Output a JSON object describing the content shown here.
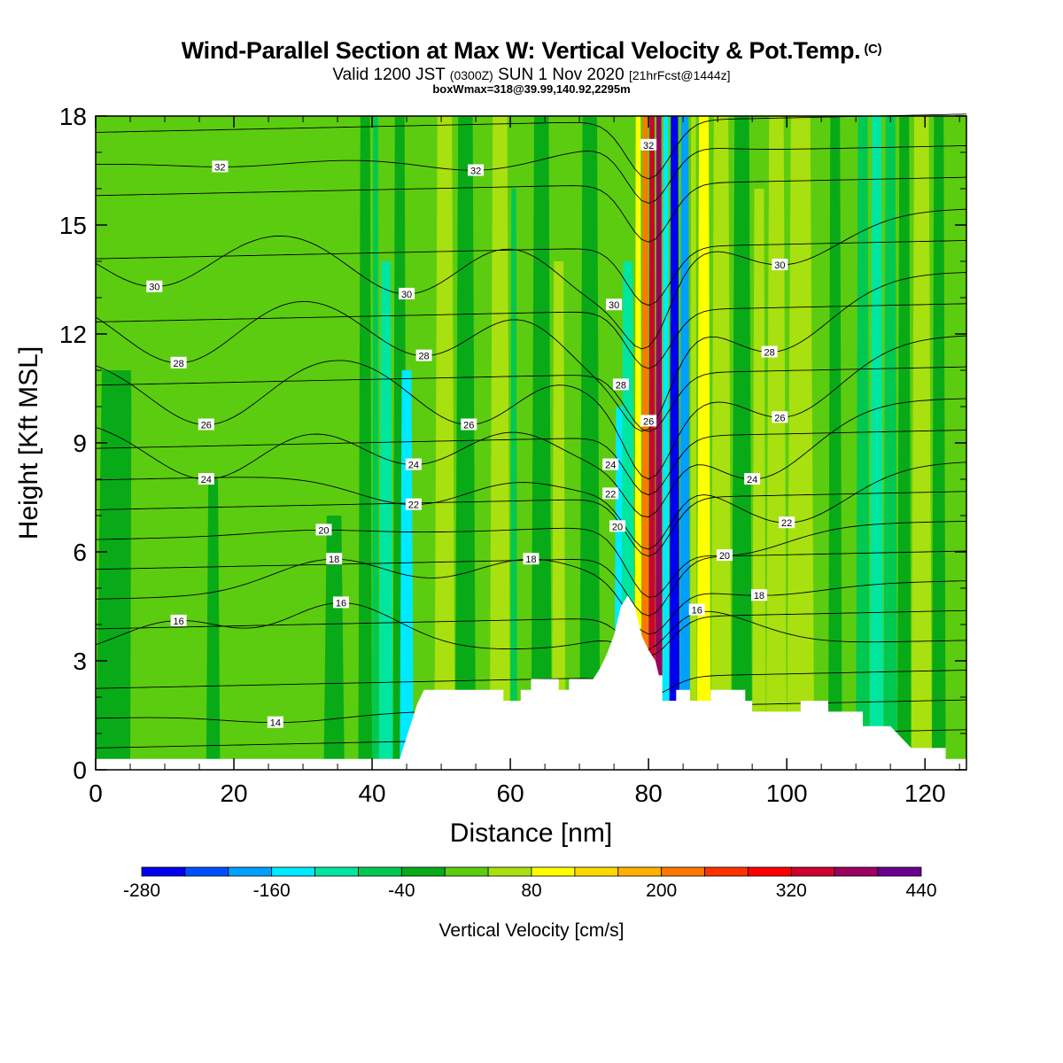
{
  "header": {
    "title": "Wind-Parallel Section at Max W: Vertical Velocity & Pot.Temp.",
    "title_mark": "(C)",
    "subtitle_a": "Valid 1200 JST",
    "subtitle_b": "(0300Z)",
    "subtitle_c": "SUN 1 Nov 2020",
    "subtitle_d": "[21hrFcst@1444z]",
    "subsubtitle": "boxWmax=318@39.99,140.92,2295m"
  },
  "chart_data": {
    "type": "heatmap",
    "xlabel": "Distance [nm]",
    "ylabel": "Height [Kft MSL]",
    "xlim": [
      0,
      126
    ],
    "ylim": [
      0,
      18
    ],
    "x_ticks": [
      0,
      20,
      40,
      60,
      80,
      100,
      120
    ],
    "y_ticks": [
      0,
      3,
      6,
      9,
      12,
      15,
      18
    ],
    "colorbar": {
      "title": "Vertical Velocity [cm/s]",
      "min": -280,
      "step": 40,
      "labels": [
        "-280",
        "-160",
        "-40",
        "80",
        "200",
        "320",
        "440"
      ],
      "colors": [
        "#0000ee",
        "#0050ff",
        "#00a0ff",
        "#00eaff",
        "#00e6a0",
        "#00c850",
        "#08aa18",
        "#5ccc10",
        "#a8e010",
        "#ffff00",
        "#ffd800",
        "#ffb000",
        "#ff7800",
        "#ff3200",
        "#ff0000",
        "#d00030",
        "#9a0060",
        "#6a0090"
      ]
    },
    "background_value_cm_s": 0,
    "vertical_velocity_bands": [
      {
        "x_start": 0,
        "x_end": 6,
        "value": -20,
        "top": 11
      },
      {
        "x_start": 5,
        "x_end": 7,
        "value": 20,
        "top": 18
      },
      {
        "x_start": 16,
        "x_end": 18,
        "value": -20,
        "top": 8
      },
      {
        "x_start": 33,
        "x_end": 36,
        "value": -20,
        "top": 7
      },
      {
        "x_start": 38,
        "x_end": 40,
        "value": -20,
        "top": 18
      },
      {
        "x_start": 40,
        "x_end": 41,
        "value": -60,
        "top": 18
      },
      {
        "x_start": 41,
        "x_end": 43,
        "value": -100,
        "top": 14
      },
      {
        "x_start": 43,
        "x_end": 45,
        "value": -20,
        "top": 18
      },
      {
        "x_start": 44,
        "x_end": 46,
        "value": -140,
        "top": 11
      },
      {
        "x_start": 49,
        "x_end": 52,
        "value": 60,
        "top": 18
      },
      {
        "x_start": 52,
        "x_end": 55,
        "value": -20,
        "top": 18
      },
      {
        "x_start": 55,
        "x_end": 57,
        "value": 20,
        "top": 16
      },
      {
        "x_start": 57,
        "x_end": 60,
        "value": 60,
        "top": 18
      },
      {
        "x_start": 60,
        "x_end": 61,
        "value": -60,
        "top": 16
      },
      {
        "x_start": 63,
        "x_end": 66,
        "value": -20,
        "top": 18
      },
      {
        "x_start": 66,
        "x_end": 68,
        "value": 60,
        "top": 14
      },
      {
        "x_start": 70,
        "x_end": 73,
        "value": -20,
        "top": 18
      },
      {
        "x_start": 75,
        "x_end": 77,
        "value": -160,
        "top": 10
      },
      {
        "x_start": 76,
        "x_end": 78,
        "value": -100,
        "top": 14
      },
      {
        "x_start": 78,
        "x_end": 79,
        "value": 100,
        "top": 18
      },
      {
        "x_start": 79,
        "x_end": 80,
        "value": 220,
        "top": 18
      },
      {
        "x_start": 80,
        "x_end": 81,
        "value": 320,
        "top": 18
      },
      {
        "x_start": 81,
        "x_end": 82,
        "value": 360,
        "top": 18
      },
      {
        "x_start": 82,
        "x_end": 83,
        "value": -140,
        "top": 18
      },
      {
        "x_start": 83,
        "x_end": 84.5,
        "value": -260,
        "top": 18
      },
      {
        "x_start": 84.5,
        "x_end": 86,
        "value": -180,
        "top": 18
      },
      {
        "x_start": 86,
        "x_end": 87,
        "value": 60,
        "top": 18
      },
      {
        "x_start": 87,
        "x_end": 89,
        "value": 100,
        "top": 18
      },
      {
        "x_start": 89,
        "x_end": 92,
        "value": 60,
        "top": 18
      },
      {
        "x_start": 92,
        "x_end": 95,
        "value": -20,
        "top": 18
      },
      {
        "x_start": 95,
        "x_end": 97,
        "value": 60,
        "top": 16
      },
      {
        "x_start": 97,
        "x_end": 100,
        "value": 60,
        "top": 18
      },
      {
        "x_start": 100,
        "x_end": 104,
        "value": 60,
        "top": 18
      },
      {
        "x_start": 106,
        "x_end": 108,
        "value": -20,
        "top": 18
      },
      {
        "x_start": 110,
        "x_end": 112,
        "value": -60,
        "top": 18
      },
      {
        "x_start": 112,
        "x_end": 114,
        "value": -100,
        "top": 18
      },
      {
        "x_start": 114,
        "x_end": 116,
        "value": -60,
        "top": 18
      },
      {
        "x_start": 116,
        "x_end": 118,
        "value": -20,
        "top": 18
      },
      {
        "x_start": 118,
        "x_end": 121,
        "value": 60,
        "top": 18
      },
      {
        "x_start": 121,
        "x_end": 123,
        "value": -20,
        "top": 18
      }
    ],
    "terrain_kft": [
      [
        0,
        0.3
      ],
      [
        44,
        0.3
      ],
      [
        44.5,
        0.6
      ],
      [
        45.5,
        1.2
      ],
      [
        46.5,
        1.8
      ],
      [
        47.5,
        2.2
      ],
      [
        59,
        2.2
      ],
      [
        59,
        1.9
      ],
      [
        61.5,
        1.9
      ],
      [
        61.5,
        2.2
      ],
      [
        63,
        2.2
      ],
      [
        63,
        2.5
      ],
      [
        67,
        2.5
      ],
      [
        67,
        2.2
      ],
      [
        68.5,
        2.2
      ],
      [
        68.5,
        2.5
      ],
      [
        72,
        2.5
      ],
      [
        73,
        2.8
      ],
      [
        74,
        3.2
      ],
      [
        75,
        3.7
      ],
      [
        76,
        4.5
      ],
      [
        77,
        4.8
      ],
      [
        78,
        4.5
      ],
      [
        79,
        3.7
      ],
      [
        80,
        3.3
      ],
      [
        81,
        3.0
      ],
      [
        81.5,
        2.6
      ],
      [
        82,
        2.6
      ],
      [
        82,
        1.9
      ],
      [
        84,
        1.9
      ],
      [
        84,
        2.2
      ],
      [
        86,
        2.2
      ],
      [
        86,
        1.9
      ],
      [
        89,
        1.9
      ],
      [
        89,
        2.2
      ],
      [
        94,
        2.2
      ],
      [
        94,
        1.9
      ],
      [
        95,
        1.9
      ],
      [
        95,
        1.6
      ],
      [
        102,
        1.6
      ],
      [
        102,
        1.9
      ],
      [
        106,
        1.9
      ],
      [
        106,
        1.6
      ],
      [
        111,
        1.6
      ],
      [
        111,
        1.2
      ],
      [
        115,
        1.2
      ],
      [
        116.5,
        0.9
      ],
      [
        118,
        0.6
      ],
      [
        123,
        0.6
      ],
      [
        123,
        0.3
      ],
      [
        126,
        0.3
      ]
    ],
    "contour_labels": [
      {
        "text": "32",
        "x": 18,
        "y": 16.6
      },
      {
        "text": "32",
        "x": 55,
        "y": 16.5
      },
      {
        "text": "32",
        "x": 80,
        "y": 17.2
      },
      {
        "text": "30",
        "x": 8.5,
        "y": 13.3
      },
      {
        "text": "30",
        "x": 45,
        "y": 13.1
      },
      {
        "text": "30",
        "x": 75,
        "y": 12.8
      },
      {
        "text": "30",
        "x": 99,
        "y": 13.9
      },
      {
        "text": "28",
        "x": 12,
        "y": 11.2
      },
      {
        "text": "28",
        "x": 47.5,
        "y": 11.4
      },
      {
        "text": "28",
        "x": 76,
        "y": 10.6
      },
      {
        "text": "28",
        "x": 97.5,
        "y": 11.5
      },
      {
        "text": "26",
        "x": 16,
        "y": 9.5
      },
      {
        "text": "26",
        "x": 54,
        "y": 9.5
      },
      {
        "text": "26",
        "x": 80,
        "y": 9.6
      },
      {
        "text": "26",
        "x": 99,
        "y": 9.7
      },
      {
        "text": "24",
        "x": 16,
        "y": 8.0
      },
      {
        "text": "24",
        "x": 46,
        "y": 8.4
      },
      {
        "text": "24",
        "x": 74.5,
        "y": 8.4
      },
      {
        "text": "24",
        "x": 95,
        "y": 8.0
      },
      {
        "text": "22",
        "x": 46,
        "y": 7.3
      },
      {
        "text": "22",
        "x": 74.5,
        "y": 7.6
      },
      {
        "text": "22",
        "x": 100,
        "y": 6.8
      },
      {
        "text": "20",
        "x": 33,
        "y": 6.6
      },
      {
        "text": "20",
        "x": 75.5,
        "y": 6.7
      },
      {
        "text": "20",
        "x": 91,
        "y": 5.9
      },
      {
        "text": "18",
        "x": 34.5,
        "y": 5.8
      },
      {
        "text": "18",
        "x": 63,
        "y": 5.8
      },
      {
        "text": "18",
        "x": 96,
        "y": 4.8
      },
      {
        "text": "16",
        "x": 12,
        "y": 4.1
      },
      {
        "text": "16",
        "x": 35.5,
        "y": 4.6
      },
      {
        "text": "16",
        "x": 87,
        "y": 4.4
      },
      {
        "text": "14",
        "x": 26,
        "y": 1.3
      }
    ]
  }
}
